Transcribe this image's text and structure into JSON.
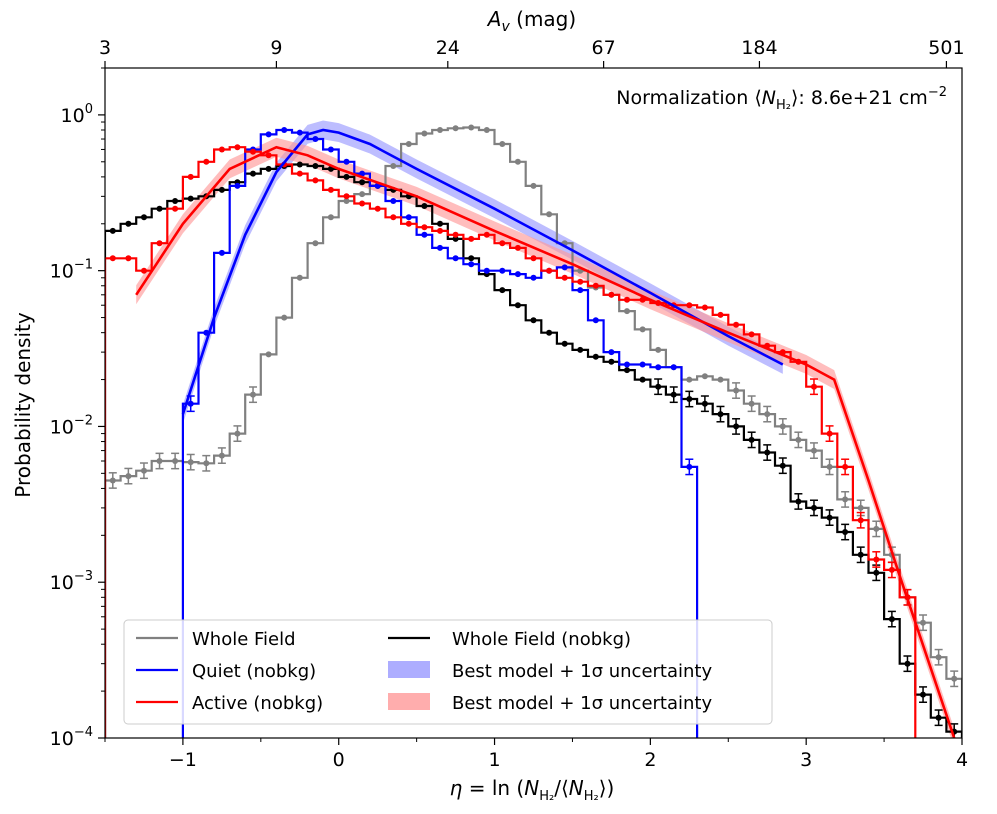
{
  "chart_data": {
    "type": "line",
    "title": "",
    "xlabel": "η = ln (N_H2/⟨N_H2⟩)",
    "ylabel": "Probability density",
    "top_xlabel": "A_v (mag)",
    "xlim": [
      -1.5,
      4.0
    ],
    "ylim": [
      0.0001,
      2.0
    ],
    "yscale": "log",
    "x_ticks": [
      "−1",
      "0",
      "1",
      "2",
      "3",
      "4"
    ],
    "x_tick_values": [
      -1,
      0,
      1,
      2,
      3,
      4
    ],
    "y_ticks": [
      "10^-4",
      "10^-3",
      "10^-2",
      "10^-1",
      "10^0"
    ],
    "top_ticks": [
      "3",
      "9",
      "24",
      "67",
      "184",
      "501"
    ],
    "top_tick_positions": [
      -1.5,
      -0.4,
      0.7,
      1.7,
      2.7,
      3.9
    ],
    "annotation": "Normalization ⟨N_H2⟩: 8.6e+21 cm^-2",
    "annotation_parts": {
      "prefix": "Normalization ⟨",
      "n": "N",
      "sub": "H₂",
      "suffix": "⟩: 8.6e+21 cm",
      "exp": "−2"
    },
    "legend": [
      "Whole Field",
      "Whole Field (nobkg)",
      "Quiet (nobkg)",
      "Best model + 1σ uncertainty",
      "Active (nobkg)",
      "Best model + 1σ uncertainty"
    ],
    "series": [
      {
        "name": "Whole Field",
        "color": "#808080",
        "style": "step",
        "x0": -1.5,
        "dx": 0.1,
        "values": [
          0.0045,
          0.0048,
          0.0052,
          0.006,
          0.006,
          0.0059,
          0.0058,
          0.0065,
          0.009,
          0.016,
          0.029,
          0.05,
          0.09,
          0.15,
          0.22,
          0.28,
          0.31,
          0.35,
          0.47,
          0.65,
          0.76,
          0.8,
          0.82,
          0.83,
          0.8,
          0.65,
          0.5,
          0.35,
          0.23,
          0.15,
          0.1,
          0.078,
          0.07,
          0.055,
          0.042,
          0.031,
          0.024,
          0.02,
          0.021,
          0.02,
          0.017,
          0.014,
          0.012,
          0.01,
          0.0082,
          0.007,
          0.0055,
          0.0034,
          0.003,
          0.0022,
          0.0015,
          0.0008,
          0.00055,
          0.00033,
          0.00024
        ]
      },
      {
        "name": "Whole Field (nobkg)",
        "color": "#000000",
        "style": "step",
        "x0": -1.5,
        "dx": 0.1,
        "values": [
          0.18,
          0.2,
          0.22,
          0.25,
          0.28,
          0.29,
          0.3,
          0.33,
          0.37,
          0.42,
          0.45,
          0.47,
          0.48,
          0.47,
          0.45,
          0.4,
          0.37,
          0.35,
          0.33,
          0.3,
          0.26,
          0.2,
          0.16,
          0.12,
          0.095,
          0.075,
          0.06,
          0.048,
          0.04,
          0.034,
          0.031,
          0.028,
          0.026,
          0.023,
          0.02,
          0.018,
          0.016,
          0.015,
          0.014,
          0.012,
          0.01,
          0.0082,
          0.0068,
          0.0056,
          0.0033,
          0.003,
          0.0026,
          0.0021,
          0.0015,
          0.00115,
          0.00058,
          0.0003,
          0.00019,
          0.000135,
          0.00011
        ]
      },
      {
        "name": "Quiet (nobkg)",
        "color": "#0000ff",
        "style": "step",
        "x0": -1.0,
        "dx": 0.1,
        "values": [
          0.014,
          0.04,
          0.13,
          0.35,
          0.6,
          0.75,
          0.8,
          0.77,
          0.7,
          0.6,
          0.5,
          0.42,
          0.35,
          0.28,
          0.22,
          0.17,
          0.14,
          0.12,
          0.11,
          0.1,
          0.1,
          0.095,
          0.09,
          0.1,
          0.105,
          0.075,
          0.048,
          0.03,
          0.025,
          0.025,
          0.024,
          0.024,
          0.0055
        ]
      },
      {
        "name": "Active (nobkg)",
        "color": "#ff0000",
        "style": "step",
        "x0": -1.5,
        "dx": 0.1,
        "values": [
          0.12,
          0.12,
          0.1,
          0.15,
          0.25,
          0.4,
          0.5,
          0.6,
          0.62,
          0.58,
          0.55,
          0.48,
          0.42,
          0.38,
          0.33,
          0.3,
          0.27,
          0.25,
          0.22,
          0.2,
          0.19,
          0.18,
          0.17,
          0.16,
          0.17,
          0.15,
          0.14,
          0.12,
          0.1,
          0.09,
          0.085,
          0.08,
          0.07,
          0.065,
          0.065,
          0.062,
          0.06,
          0.06,
          0.058,
          0.052,
          0.045,
          0.039,
          0.033,
          0.03,
          0.026,
          0.018,
          0.009,
          0.0055,
          0.0025,
          0.0014,
          0.0012,
          0.0008
        ]
      },
      {
        "name": "Best model (Quiet)",
        "color": "#0000ff",
        "band_color": "#9999ff",
        "style": "model",
        "x": [
          -1.0,
          -0.8,
          -0.6,
          -0.4,
          -0.2,
          -0.1,
          0.0,
          0.2,
          0.5,
          1.0,
          1.5,
          2.0,
          2.5,
          2.85
        ],
        "values": [
          0.012,
          0.05,
          0.17,
          0.43,
          0.75,
          0.8,
          0.77,
          0.65,
          0.45,
          0.25,
          0.135,
          0.072,
          0.038,
          0.025
        ]
      },
      {
        "name": "Best model (Active)",
        "color": "#ff0000",
        "band_color": "#ff9999",
        "style": "model",
        "x": [
          -1.3,
          -1.0,
          -0.7,
          -0.4,
          -0.2,
          0.0,
          0.5,
          1.0,
          1.5,
          2.0,
          2.5,
          3.0,
          3.18,
          3.4,
          3.6,
          3.8,
          3.95
        ],
        "values": [
          0.07,
          0.2,
          0.45,
          0.62,
          0.55,
          0.45,
          0.3,
          0.18,
          0.11,
          0.065,
          0.04,
          0.025,
          0.02,
          0.0045,
          0.0011,
          0.00028,
          0.0001
        ]
      }
    ]
  }
}
